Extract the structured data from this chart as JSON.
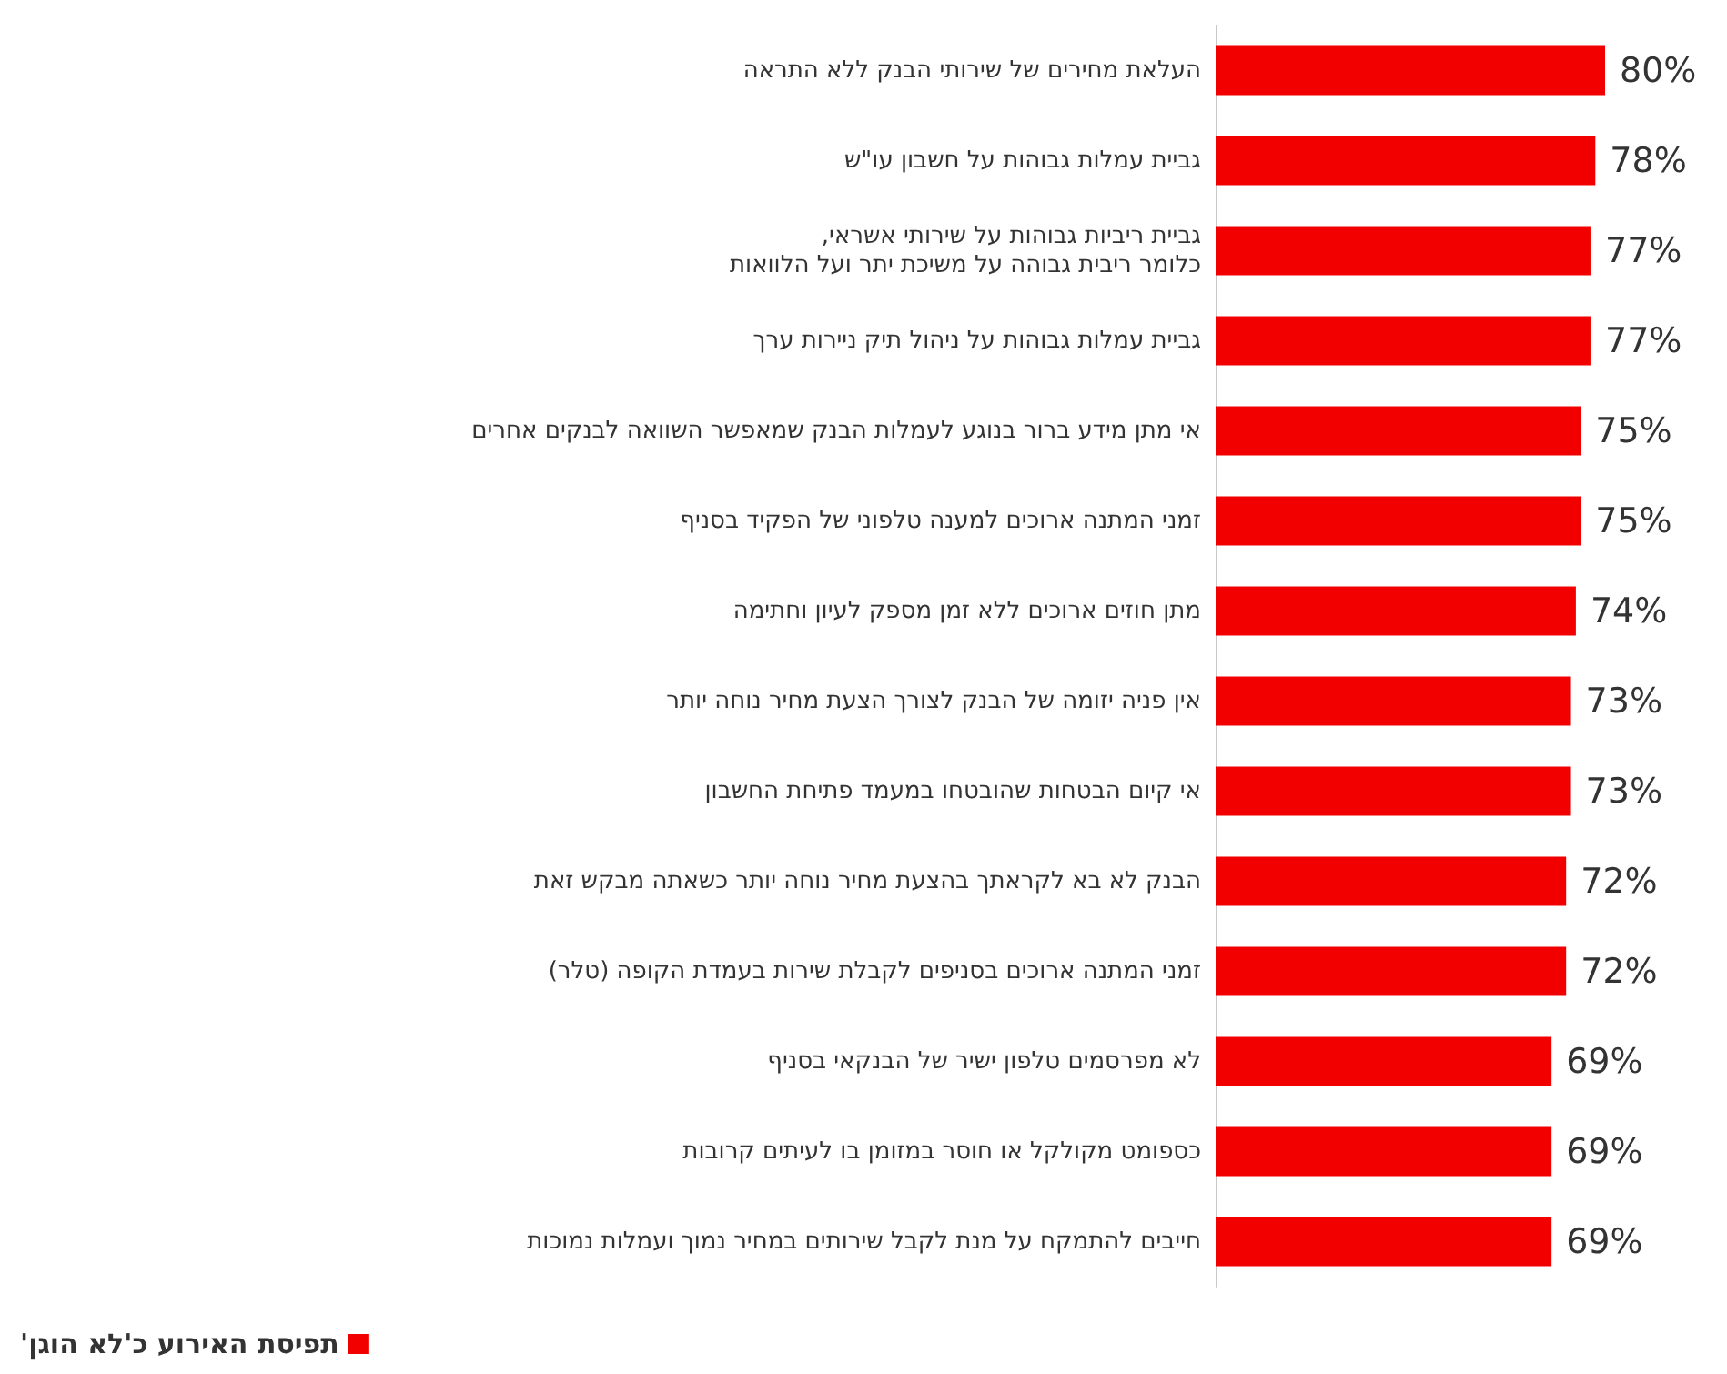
{
  "chart_data": {
    "type": "bar",
    "orientation": "horizontal",
    "categories": [
      "העלאת מחירים של שירותי הבנק ללא התראה",
      "גביית עמלות גבוהות על חשבון עו\"ש",
      "גביית ריביות גבוהות על שירותי אשראי,\nכלומר ריבית גבוהה על משיכת יתר ועל הלוואות",
      "גביית עמלות גבוהות על ניהול תיק ניירות ערך",
      "אי מתן מידע ברור בנוגע לעמלות הבנק שמאפשר השוואה לבנקים אחרים",
      "זמני המתנה ארוכים למענה טלפוני של הפקיד בסניף",
      "מתן חוזים ארוכים ללא זמן מספק לעיון וחתימה",
      "אין פניה יזומה של הבנק לצורך הצעת מחיר נוחה יותר",
      "אי קיום הבטחות שהובטחו במעמד פתיחת החשבון",
      "הבנק לא בא לקראתך בהצעת מחיר נוחה יותר כשאתה מבקש זאת",
      "זמני המתנה ארוכים בסניפים לקבלת שירות בעמדת הקופה (טלר)",
      "לא מפרסמים טלפון ישיר של הבנקאי בסניף",
      "כספומט מקולקל או חוסר במזומן בו לעיתים קרובות",
      "חייבים להתמקח על מנת לקבל שירותים במחיר נמוך ועמלות נמוכות"
    ],
    "series": [
      {
        "name": "תפיסת האירוע כ'לא הוגן'",
        "color": "#f20000",
        "values": [
          80,
          78,
          77,
          77,
          75,
          75,
          74,
          73,
          73,
          72,
          72,
          69,
          69,
          69
        ],
        "value_labels": [
          "80%",
          "78%",
          "77%",
          "77%",
          "75%",
          "75%",
          "74%",
          "73%",
          "73%",
          "72%",
          "72%",
          "69%",
          "69%",
          "69%"
        ]
      }
    ],
    "legend": "bottom left"
  }
}
